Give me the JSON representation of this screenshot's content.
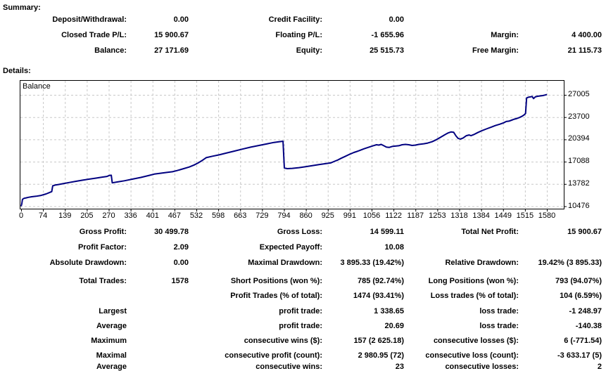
{
  "summary": {
    "title": "Summary:",
    "rows": [
      {
        "c1l": "Deposit/Withdrawal:",
        "c1v": "0.00",
        "c2l": "Credit Facility:",
        "c2v": "0.00",
        "c3l": "",
        "c3v": ""
      },
      {
        "c1l": "Closed Trade P/L:",
        "c1v": "15 900.67",
        "c2l": "Floating P/L:",
        "c2v": "-1 655.96",
        "c3l": "Margin:",
        "c3v": "4 400.00"
      },
      {
        "c1l": "Balance:",
        "c1v": "27 171.69",
        "c2l": "Equity:",
        "c2v": "25 515.73",
        "c3l": "Free Margin:",
        "c3v": "21 115.73"
      }
    ]
  },
  "details": {
    "title": "Details:"
  },
  "chart_data": {
    "type": "line",
    "title": "Balance",
    "line_color": "#000080",
    "grid_color": "#c8c8c8",
    "border_color": "#000000",
    "x_range": [
      0,
      1580
    ],
    "y_axis_side": "right",
    "x_ticks": [
      "0",
      "74",
      "139",
      "205",
      "270",
      "336",
      "401",
      "467",
      "532",
      "598",
      "663",
      "729",
      "794",
      "860",
      "925",
      "991",
      "1056",
      "1122",
      "1187",
      "1253",
      "1318",
      "1384",
      "1449",
      "1515",
      "1580"
    ],
    "y_ticks": [
      27005,
      23700,
      20394,
      17088,
      13782,
      10476
    ],
    "series": [
      {
        "name": "Balance",
        "points": [
          [
            0,
            10476
          ],
          [
            2,
            10800
          ],
          [
            4,
            11500
          ],
          [
            9,
            11650
          ],
          [
            15,
            11720
          ],
          [
            22,
            11800
          ],
          [
            32,
            11880
          ],
          [
            45,
            11960
          ],
          [
            60,
            12080
          ],
          [
            75,
            12300
          ],
          [
            85,
            12500
          ],
          [
            92,
            12650
          ],
          [
            95,
            13500
          ],
          [
            102,
            13620
          ],
          [
            112,
            13700
          ],
          [
            126,
            13820
          ],
          [
            145,
            14000
          ],
          [
            165,
            14180
          ],
          [
            185,
            14350
          ],
          [
            205,
            14500
          ],
          [
            225,
            14650
          ],
          [
            245,
            14800
          ],
          [
            258,
            14900
          ],
          [
            266,
            15050
          ],
          [
            271,
            15080
          ],
          [
            274,
            13950
          ],
          [
            290,
            14080
          ],
          [
            310,
            14250
          ],
          [
            335,
            14500
          ],
          [
            360,
            14750
          ],
          [
            385,
            15050
          ],
          [
            400,
            15240
          ],
          [
            420,
            15380
          ],
          [
            440,
            15500
          ],
          [
            455,
            15600
          ],
          [
            468,
            15760
          ],
          [
            485,
            16000
          ],
          [
            505,
            16300
          ],
          [
            520,
            16600
          ],
          [
            532,
            16900
          ],
          [
            545,
            17300
          ],
          [
            556,
            17680
          ],
          [
            575,
            17900
          ],
          [
            595,
            18100
          ],
          [
            615,
            18350
          ],
          [
            640,
            18650
          ],
          [
            665,
            18950
          ],
          [
            690,
            19250
          ],
          [
            715,
            19500
          ],
          [
            740,
            19750
          ],
          [
            760,
            19950
          ],
          [
            775,
            20050
          ],
          [
            787,
            20120
          ],
          [
            791,
            16150
          ],
          [
            800,
            16050
          ],
          [
            815,
            16100
          ],
          [
            835,
            16200
          ],
          [
            855,
            16350
          ],
          [
            875,
            16500
          ],
          [
            895,
            16650
          ],
          [
            915,
            16800
          ],
          [
            930,
            16900
          ],
          [
            942,
            17150
          ],
          [
            950,
            17300
          ],
          [
            962,
            17600
          ],
          [
            975,
            17900
          ],
          [
            988,
            18200
          ],
          [
            1000,
            18450
          ],
          [
            1015,
            18700
          ],
          [
            1030,
            19000
          ],
          [
            1045,
            19250
          ],
          [
            1058,
            19450
          ],
          [
            1068,
            19600
          ],
          [
            1075,
            19550
          ],
          [
            1082,
            19650
          ],
          [
            1090,
            19450
          ],
          [
            1098,
            19250
          ],
          [
            1106,
            19200
          ],
          [
            1115,
            19350
          ],
          [
            1125,
            19400
          ],
          [
            1135,
            19450
          ],
          [
            1145,
            19600
          ],
          [
            1155,
            19650
          ],
          [
            1165,
            19600
          ],
          [
            1175,
            19500
          ],
          [
            1185,
            19550
          ],
          [
            1195,
            19650
          ],
          [
            1210,
            19750
          ],
          [
            1222,
            19850
          ],
          [
            1235,
            20050
          ],
          [
            1248,
            20350
          ],
          [
            1260,
            20700
          ],
          [
            1272,
            21050
          ],
          [
            1283,
            21350
          ],
          [
            1292,
            21500
          ],
          [
            1300,
            21450
          ],
          [
            1307,
            20900
          ],
          [
            1313,
            20550
          ],
          [
            1320,
            20450
          ],
          [
            1328,
            20600
          ],
          [
            1338,
            20950
          ],
          [
            1346,
            21050
          ],
          [
            1352,
            20950
          ],
          [
            1360,
            21100
          ],
          [
            1372,
            21400
          ],
          [
            1385,
            21700
          ],
          [
            1398,
            21950
          ],
          [
            1412,
            22200
          ],
          [
            1425,
            22450
          ],
          [
            1438,
            22650
          ],
          [
            1450,
            22850
          ],
          [
            1458,
            23050
          ],
          [
            1466,
            23100
          ],
          [
            1474,
            23250
          ],
          [
            1482,
            23400
          ],
          [
            1490,
            23500
          ],
          [
            1498,
            23650
          ],
          [
            1506,
            23850
          ],
          [
            1512,
            24050
          ],
          [
            1516,
            24250
          ],
          [
            1519,
            26550
          ],
          [
            1524,
            26650
          ],
          [
            1530,
            26700
          ],
          [
            1536,
            26750
          ],
          [
            1540,
            26450
          ],
          [
            1545,
            26700
          ],
          [
            1552,
            26800
          ],
          [
            1560,
            26850
          ],
          [
            1568,
            26900
          ],
          [
            1575,
            26980
          ],
          [
            1580,
            27060
          ]
        ]
      }
    ]
  },
  "stats": {
    "rows": [
      {
        "c1l": "Gross Profit:",
        "c1v": "30 499.78",
        "c2l": "Gross Loss:",
        "c2v": "14 599.11",
        "c3l": "Total Net Profit:",
        "c3v": "15 900.67"
      },
      {
        "c1l": "Profit Factor:",
        "c1v": "2.09",
        "c2l": "Expected Payoff:",
        "c2v": "10.08",
        "c3l": "",
        "c3v": ""
      },
      {
        "c1l": "Absolute Drawdown:",
        "c1v": "0.00",
        "c2l": "Maximal Drawdown:",
        "c2v": "3 895.33 (19.42%)",
        "c3l": "Relative Drawdown:",
        "c3v": "19.42% (3 895.33)"
      },
      {
        "c1l": "Total Trades:",
        "c1v": "1578",
        "c2l": "Short Positions (won %):",
        "c2v": "785 (92.74%)",
        "c3l": "Long Positions (won %):",
        "c3v": "793 (94.07%)"
      },
      {
        "c1l": "",
        "c1v": "",
        "c2l": "Profit Trades (% of total):",
        "c2v": "1474 (93.41%)",
        "c3l": "Loss trades (% of total):",
        "c3v": "104 (6.59%)"
      },
      {
        "c1l": "Largest",
        "c1v": "",
        "c2l": "profit trade:",
        "c2v": "1 338.65",
        "c3l": "loss trade:",
        "c3v": "-1 248.97"
      },
      {
        "c1l": "Average",
        "c1v": "",
        "c2l": "profit trade:",
        "c2v": "20.69",
        "c3l": "loss trade:",
        "c3v": "-140.38"
      },
      {
        "c1l": "Maximum",
        "c1v": "",
        "c2l": "consecutive wins ($):",
        "c2v": "157 (2 625.18)",
        "c3l": "consecutive losses ($):",
        "c3v": "6 (-771.54)"
      },
      {
        "c1l": "Maximal",
        "c1v": "",
        "c2l": "consecutive profit (count):",
        "c2v": "2 980.95 (72)",
        "c3l": "consecutive loss (count):",
        "c3v": "-3 633.17 (5)"
      },
      {
        "c1l": "Average",
        "c1v": "",
        "c2l": "consecutive wins:",
        "c2v": "23",
        "c3l": "consecutive losses:",
        "c3v": "2"
      }
    ]
  }
}
